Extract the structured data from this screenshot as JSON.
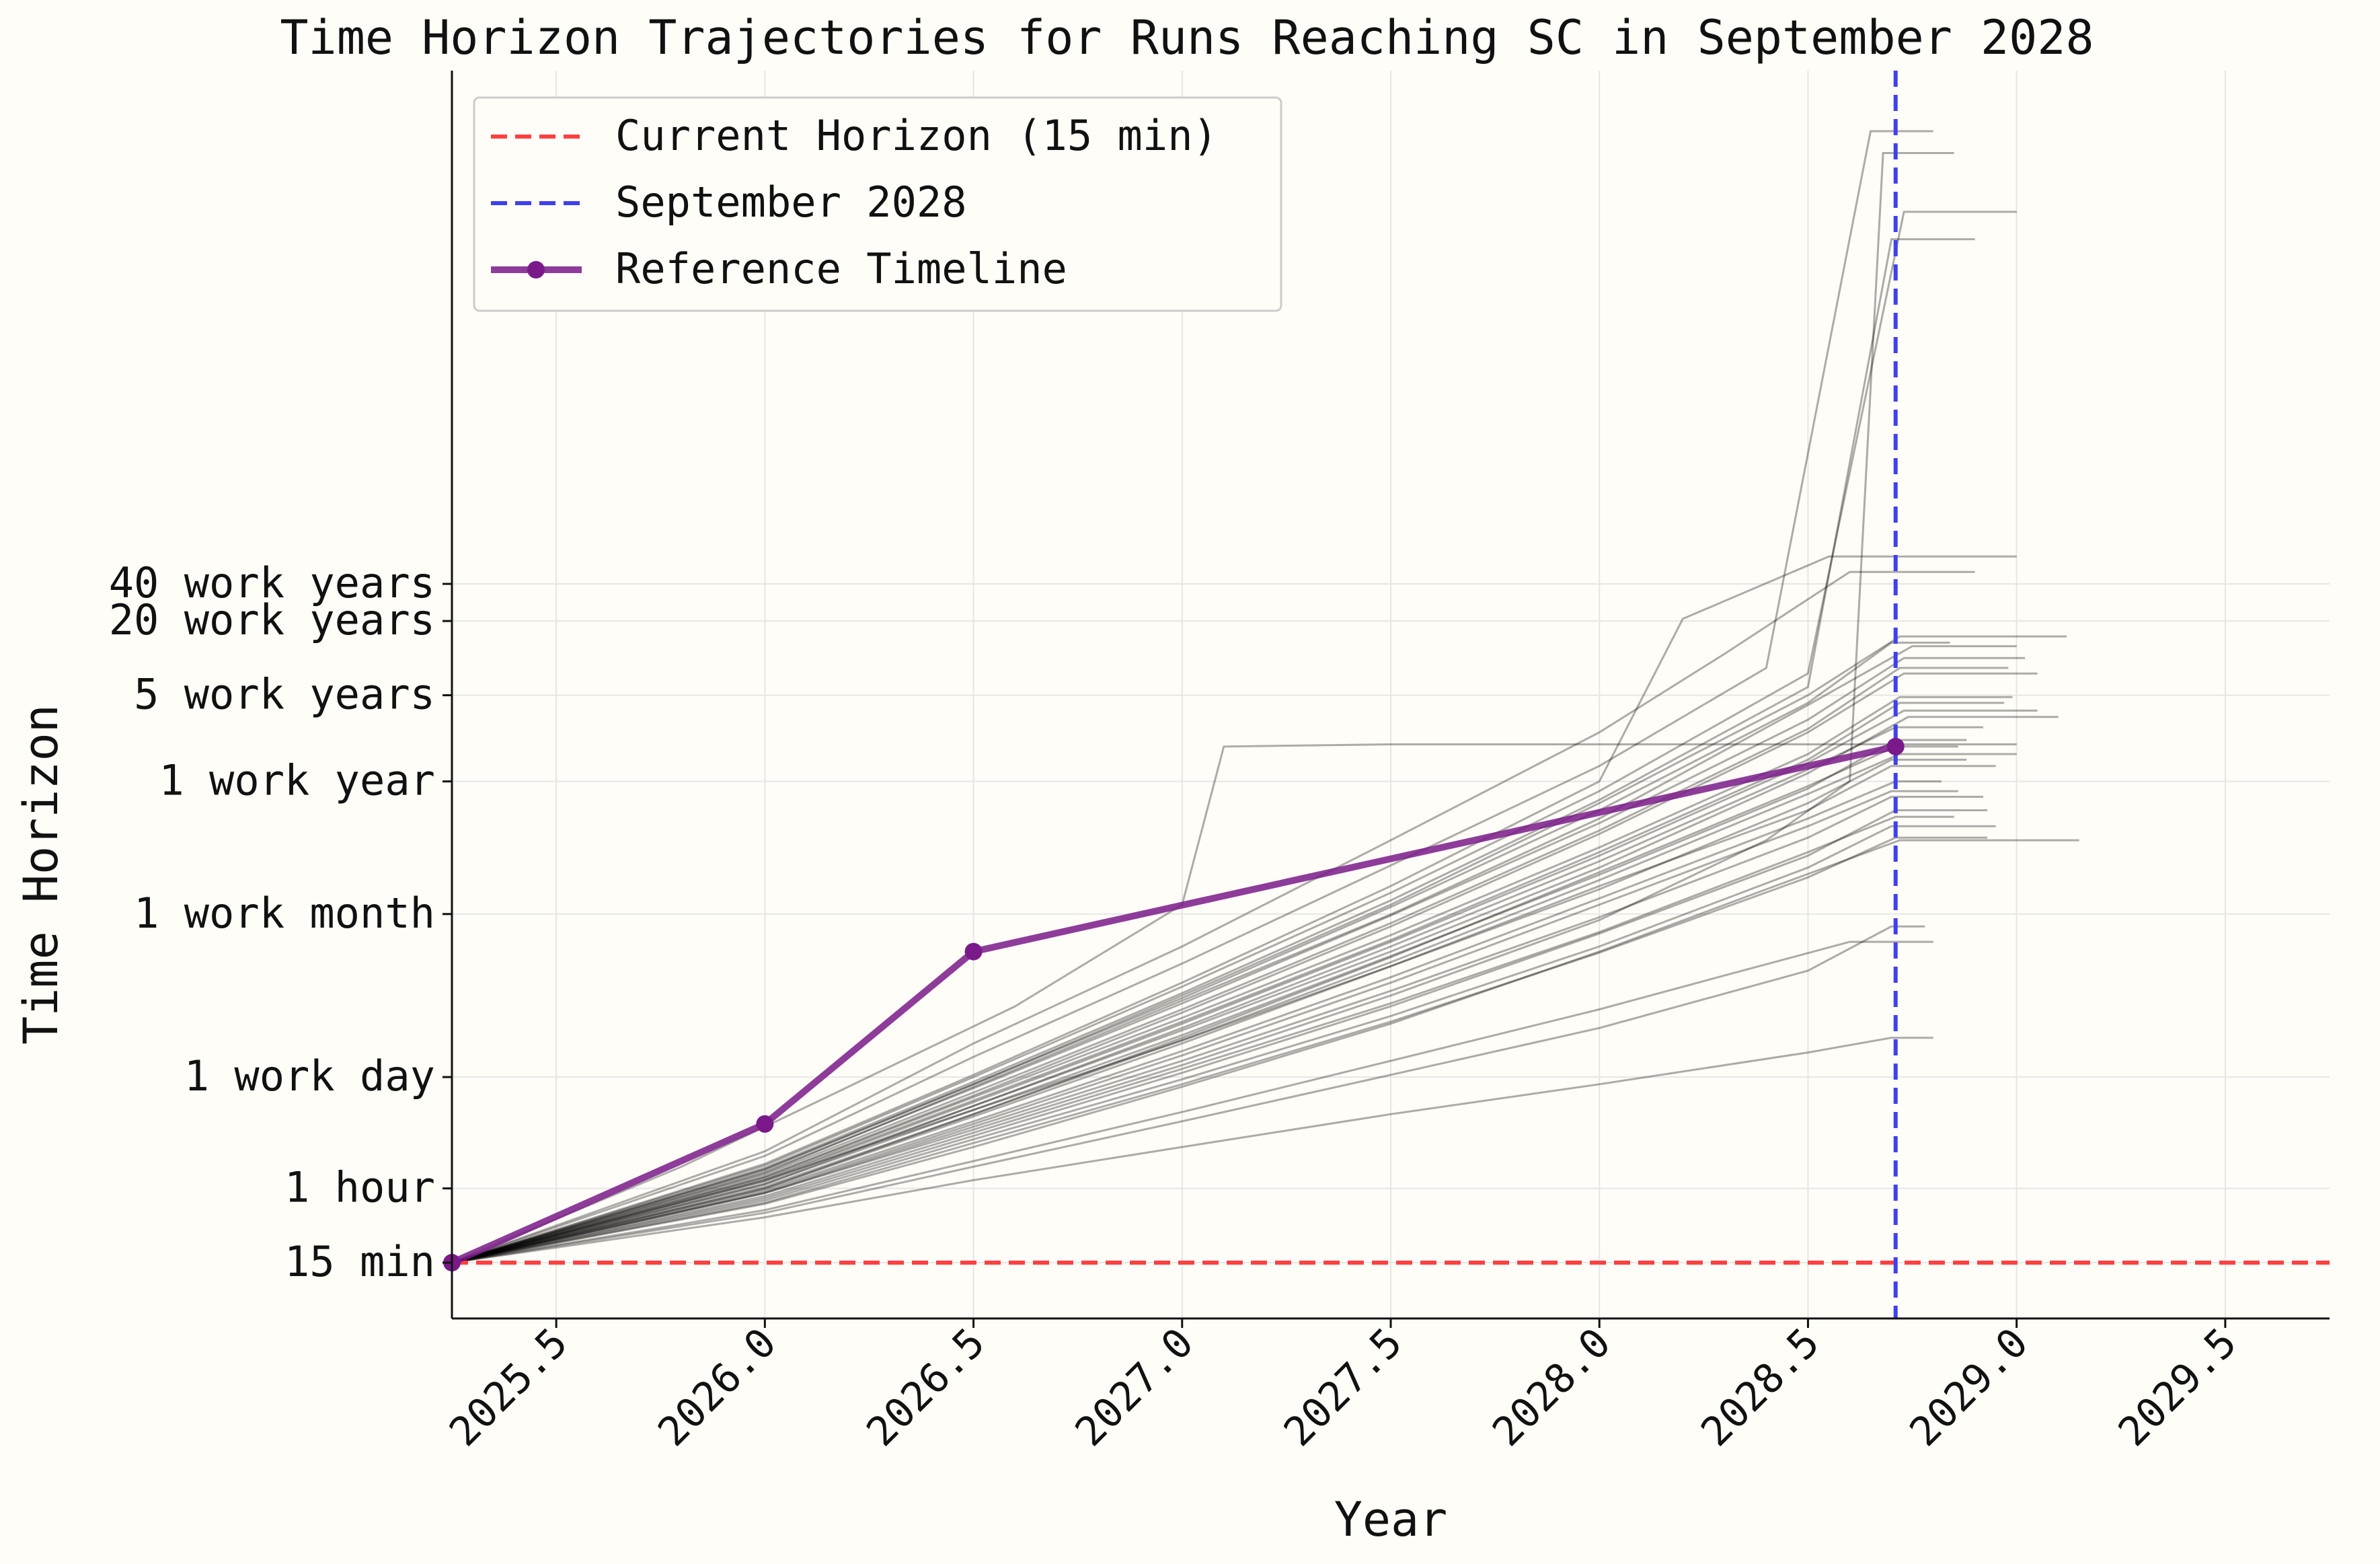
{
  "chart_data": {
    "type": "line",
    "title": "Time Horizon Trajectories for Runs Reaching SC in September 2028",
    "xlabel": "Year",
    "ylabel": "Time Horizon",
    "xlim": [
      2025.25,
      2029.75
    ],
    "y_scale": "log",
    "y_unit": "minutes",
    "grid": true,
    "legend_position": "top-left",
    "x_ticks": [
      {
        "value": 2025.5,
        "label": "2025.5"
      },
      {
        "value": 2026.0,
        "label": "2026.0"
      },
      {
        "value": 2026.5,
        "label": "2026.5"
      },
      {
        "value": 2027.0,
        "label": "2027.0"
      },
      {
        "value": 2027.5,
        "label": "2027.5"
      },
      {
        "value": 2028.0,
        "label": "2028.0"
      },
      {
        "value": 2028.5,
        "label": "2028.5"
      },
      {
        "value": 2029.0,
        "label": "2029.0"
      },
      {
        "value": 2029.5,
        "label": "2029.5"
      }
    ],
    "y_ticks": [
      {
        "value": 15,
        "label": "15 min"
      },
      {
        "value": 60,
        "label": "1 hour"
      },
      {
        "value": 480,
        "label": "1 work day"
      },
      {
        "value": 10080,
        "label": "1 work month"
      },
      {
        "value": 120000,
        "label": "1 work year"
      },
      {
        "value": 600000,
        "label": "5 work years"
      },
      {
        "value": 2400000,
        "label": "20 work years"
      },
      {
        "value": 4800000,
        "label": "40 work years"
      }
    ],
    "reference_lines": [
      {
        "name": "Current Horizon (15 min)",
        "orientation": "horizontal",
        "value": 15,
        "color": "#ff4040"
      },
      {
        "name": "September 2028",
        "orientation": "vertical",
        "value": 2028.71,
        "color": "#4040ee"
      }
    ],
    "reference_timeline": {
      "name": "Reference Timeline",
      "color": "#7a1a8a",
      "x": [
        2025.25,
        2026.0,
        2026.5,
        2028.71
      ],
      "y": [
        15,
        200,
        5000,
        230000
      ]
    },
    "trajectories": [
      {
        "x": [
          2025.25,
          2026.0,
          2026.5,
          2027.0,
          2027.5,
          2028.0,
          2028.5,
          2028.71,
          2028.86
        ],
        "y": [
          15,
          60,
          240,
          1000,
          4500,
          22000,
          110000,
          230000,
          230000
        ]
      },
      {
        "x": [
          2025.25,
          2026.0,
          2026.5,
          2027.0,
          2027.5,
          2028.0,
          2028.5,
          2028.75,
          2029.0
        ],
        "y": [
          15,
          80,
          400,
          2000,
          10000,
          60000,
          500000,
          1500000,
          1500000
        ]
      },
      {
        "x": [
          2025.25,
          2026.0,
          2026.5,
          2027.0,
          2027.5,
          2028.0,
          2028.3,
          2028.6,
          2028.9
        ],
        "y": [
          15,
          120,
          900,
          5500,
          40000,
          300000,
          1300000,
          6000000,
          6000000
        ]
      },
      {
        "x": [
          2025.25,
          2026.0,
          2026.5,
          2027.0,
          2027.5,
          2028.0,
          2028.4,
          2028.72,
          2029.15
        ],
        "y": [
          15,
          45,
          130,
          400,
          1300,
          5000,
          16000,
          40000,
          40000
        ]
      },
      {
        "x": [
          2025.25,
          2026.0,
          2026.5,
          2027.0,
          2027.5,
          2028.0,
          2028.5,
          2028.7,
          2028.95
        ],
        "y": [
          15,
          70,
          260,
          950,
          3800,
          17000,
          70000,
          160000,
          160000
        ]
      },
      {
        "x": [
          2025.25,
          2026.0,
          2026.5,
          2027.0,
          2027.5,
          2028.0,
          2028.4,
          2028.6,
          2028.68,
          2028.85
        ],
        "y": [
          15,
          55,
          180,
          600,
          2200,
          9000,
          40000,
          120000,
          15000000000,
          15000000000
        ]
      },
      {
        "x": [
          2025.25,
          2026.0,
          2026.5,
          2027.0,
          2027.5,
          2028.0,
          2028.5,
          2028.73,
          2029.05
        ],
        "y": [
          15,
          75,
          340,
          1600,
          8000,
          45000,
          300000,
          900000,
          900000
        ]
      },
      {
        "x": [
          2025.25,
          2026.0,
          2026.5,
          2027.0,
          2027.5,
          2028.0,
          2028.5,
          2028.7,
          2028.8
        ],
        "y": [
          15,
          35,
          70,
          130,
          240,
          420,
          760,
          1000,
          1000
        ]
      },
      {
        "x": [
          2025.25,
          2026.0,
          2026.5,
          2027.0,
          2027.5,
          2028.0,
          2028.5,
          2028.71,
          2028.92
        ],
        "y": [
          15,
          65,
          280,
          1200,
          5500,
          27000,
          150000,
          330000,
          330000
        ]
      },
      {
        "x": [
          2025.25,
          2025.8,
          2026.2,
          2026.6,
          2027.0,
          2027.1,
          2027.5,
          2028.0,
          2028.6,
          2029.0
        ],
        "y": [
          15,
          90,
          400,
          1800,
          12000,
          230000,
          240000,
          240000,
          240000,
          240000
        ]
      },
      {
        "x": [
          2025.25,
          2026.0,
          2026.5,
          2027.0,
          2027.5,
          2028.0,
          2028.5,
          2028.71,
          2028.93
        ],
        "y": [
          15,
          50,
          160,
          520,
          1800,
          7000,
          30000,
          70000,
          70000
        ]
      },
      {
        "x": [
          2025.25,
          2026.0,
          2026.5,
          2027.0,
          2027.5,
          2028.0,
          2028.5,
          2028.72,
          2029.12
        ],
        "y": [
          15,
          85,
          420,
          2200,
          12000,
          80000,
          600000,
          1800000,
          1800000
        ]
      },
      {
        "x": [
          2025.25,
          2026.0,
          2026.5,
          2027.0,
          2027.5,
          2028.0,
          2028.2,
          2028.55,
          2029.0
        ],
        "y": [
          15,
          95,
          500,
          2800,
          17000,
          120000,
          2500000,
          8000000,
          8000000
        ]
      },
      {
        "x": [
          2025.25,
          2026.0,
          2026.5,
          2027.0,
          2027.5,
          2028.0,
          2028.5,
          2028.7,
          2028.88
        ],
        "y": [
          15,
          60,
          230,
          900,
          3800,
          16000,
          80000,
          180000,
          180000
        ]
      },
      {
        "x": [
          2025.25,
          2026.0,
          2026.5,
          2027.0,
          2027.5,
          2028.0,
          2028.4,
          2028.65,
          2028.8
        ],
        "y": [
          15,
          110,
          700,
          4000,
          25000,
          160000,
          1000000,
          30000000000,
          30000000000
        ]
      },
      {
        "x": [
          2025.25,
          2026.0,
          2026.5,
          2027.0,
          2027.5,
          2028.0,
          2028.5,
          2028.73,
          2029.05
        ],
        "y": [
          15,
          70,
          300,
          1300,
          6000,
          30000,
          170000,
          450000,
          450000
        ]
      },
      {
        "x": [
          2025.25,
          2026.0,
          2026.5,
          2027.0,
          2027.5,
          2028.0,
          2028.5,
          2028.7,
          2028.92
        ],
        "y": [
          15,
          55,
          190,
          650,
          2400,
          9500,
          42000,
          90000,
          90000
        ]
      },
      {
        "x": [
          2025.25,
          2026.0,
          2026.5,
          2027.0,
          2027.5,
          2028.0,
          2028.5,
          2028.72,
          2028.98
        ],
        "y": [
          15,
          78,
          360,
          1700,
          8500,
          48000,
          320000,
          1000000,
          1000000
        ]
      },
      {
        "x": [
          2025.25,
          2026.0,
          2026.5,
          2027.0,
          2027.5,
          2028.0,
          2028.3,
          2028.6,
          2028.8
        ],
        "y": [
          15,
          40,
          100,
          250,
          650,
          1700,
          3200,
          6000,
          6000
        ]
      },
      {
        "x": [
          2025.25,
          2026.0,
          2026.5,
          2027.0,
          2027.5,
          2028.0,
          2028.5,
          2028.74,
          2029.1
        ],
        "y": [
          15,
          68,
          280,
          1150,
          5000,
          24000,
          140000,
          400000,
          400000
        ]
      },
      {
        "x": [
          2025.25,
          2026.0,
          2026.5,
          2027.0,
          2027.5,
          2028.0,
          2028.5,
          2028.71,
          2028.85
        ],
        "y": [
          15,
          52,
          170,
          560,
          1900,
          7200,
          32000,
          62000,
          62000
        ]
      },
      {
        "x": [
          2025.25,
          2026.0,
          2026.5,
          2027.0,
          2027.5,
          2028.0,
          2028.5,
          2028.7,
          2028.9
        ],
        "y": [
          15,
          88,
          440,
          2300,
          13000,
          85000,
          700000,
          3000000000,
          3000000000
        ]
      },
      {
        "x": [
          2025.25,
          2026.0,
          2026.5,
          2027.0,
          2027.5,
          2028.0,
          2028.5,
          2028.72,
          2029.0
        ],
        "y": [
          15,
          62,
          240,
          960,
          4100,
          19000,
          95000,
          200000,
          200000
        ]
      },
      {
        "x": [
          2025.25,
          2026.0,
          2026.5,
          2027.0,
          2027.5,
          2028.0,
          2028.5,
          2028.7,
          2028.95
        ],
        "y": [
          15,
          48,
          150,
          460,
          1500,
          5500,
          24000,
          52000,
          52000
        ]
      },
      {
        "x": [
          2025.25,
          2026.0,
          2026.5,
          2027.0,
          2027.5,
          2028.0,
          2028.5,
          2028.73,
          2029.02
        ],
        "y": [
          15,
          82,
          390,
          1900,
          9800,
          55000,
          380000,
          1200000,
          1200000
        ]
      },
      {
        "x": [
          2025.25,
          2026.0,
          2026.5,
          2027.0,
          2027.5,
          2028.0,
          2028.5,
          2028.71,
          2028.82
        ],
        "y": [
          15,
          58,
          210,
          780,
          3100,
          13500,
          60000,
          120000,
          120000
        ]
      },
      {
        "x": [
          2025.25,
          2026.0,
          2026.5,
          2027.0,
          2027.5,
          2028.0,
          2028.5,
          2028.7,
          2028.78
        ],
        "y": [
          15,
          38,
          90,
          210,
          500,
          1200,
          3500,
          8000,
          8000
        ]
      },
      {
        "x": [
          2025.25,
          2026.0,
          2026.5,
          2027.0,
          2027.5,
          2028.0,
          2028.5,
          2028.72,
          2028.97
        ],
        "y": [
          15,
          72,
          310,
          1350,
          6200,
          32000,
          180000,
          520000,
          520000
        ]
      },
      {
        "x": [
          2025.25,
          2026.0,
          2026.5,
          2027.0,
          2027.5,
          2028.0,
          2028.5,
          2028.71,
          2028.88
        ],
        "y": [
          15,
          65,
          260,
          1050,
          4600,
          21000,
          105000,
          260000,
          260000
        ]
      },
      {
        "x": [
          2025.25,
          2026.0,
          2026.5,
          2027.0,
          2027.5,
          2028.0,
          2028.5,
          2028.73,
          2029.0
        ],
        "y": [
          15,
          92,
          480,
          2600,
          15000,
          100000,
          900000,
          5000000000,
          5000000000
        ]
      },
      {
        "x": [
          2025.25,
          2026.0,
          2026.5,
          2027.0,
          2027.5,
          2028.0,
          2028.5,
          2028.7,
          2028.86
        ],
        "y": [
          15,
          56,
          200,
          720,
          2800,
          12000,
          52000,
          100000,
          100000
        ]
      },
      {
        "x": [
          2025.25,
          2026.0,
          2026.5,
          2027.0,
          2027.5,
          2028.0,
          2028.5,
          2028.72,
          2028.99
        ],
        "y": [
          15,
          74,
          330,
          1450,
          6800,
          35000,
          200000,
          580000,
          580000
        ]
      },
      {
        "x": [
          2025.25,
          2026.0,
          2026.5,
          2027.0,
          2027.5,
          2028.0,
          2028.5,
          2028.71,
          2028.93
        ],
        "y": [
          15,
          46,
          140,
          420,
          1350,
          4900,
          20000,
          42000,
          42000
        ]
      },
      {
        "x": [
          2025.25,
          2026.0,
          2026.5,
          2027.0,
          2027.5,
          2028.0,
          2028.5,
          2028.7,
          2028.84
        ],
        "y": [
          15,
          86,
          420,
          2100,
          11500,
          70000,
          520000,
          1600000,
          1600000
        ]
      }
    ]
  },
  "legend": {
    "items": [
      {
        "label": "Current Horizon (15 min)",
        "color": "#ff4040",
        "style": "dashed"
      },
      {
        "label": "September 2028",
        "color": "#4040ee",
        "style": "dashed"
      },
      {
        "label": "Reference Timeline",
        "color": "#7a1a8a",
        "style": "line-marker"
      }
    ]
  }
}
